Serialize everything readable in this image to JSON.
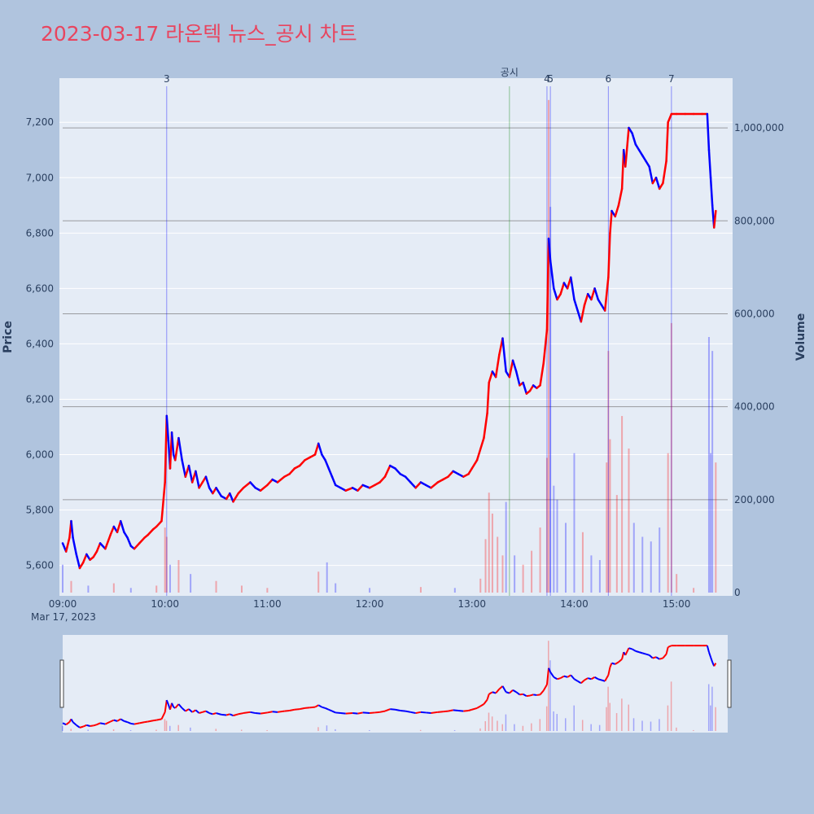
{
  "title": "2023-03-17 라온텍 뉴스_공시 차트",
  "chart_data": {
    "type": "candlestick",
    "title": "2023-03-17 라온텍 뉴스_공시 차트",
    "ylabel": "Price",
    "y2label": "Volume",
    "date_label": "Mar 17, 2023",
    "x_ticks": [
      "09:00",
      "10:00",
      "11:00",
      "12:00",
      "13:00",
      "14:00",
      "15:00"
    ],
    "price_range": [
      5490,
      7330
    ],
    "price_ticks": [
      "5,600",
      "5,800",
      "6,000",
      "6,200",
      "6,400",
      "6,600",
      "6,800",
      "7,000",
      "7,200"
    ],
    "volume_range": [
      0,
      1100000
    ],
    "volume_ticks": [
      "0",
      "200,000",
      "400,000",
      "600,000",
      "800,000",
      "1,000,000"
    ],
    "x_range": [
      "09:00",
      "15:30"
    ],
    "up_color": "#ff0000",
    "down_color": "#0000ff",
    "event_markers": [
      {
        "label": "3",
        "time": "10:01",
        "color": "#0000ff"
      },
      {
        "label": "공시",
        "time": "13:22",
        "color": "#008000"
      },
      {
        "label": "4",
        "time": "13:44",
        "color": "#0000ff"
      },
      {
        "label": "5",
        "time": "13:46",
        "color": "#0000ff"
      },
      {
        "label": "6",
        "time": "14:20",
        "color": "#0000ff"
      },
      {
        "label": "7",
        "time": "14:57",
        "color": "#0000ff"
      }
    ],
    "volume_reference_lines": [
      200000,
      400000,
      600000,
      800000,
      1000000
    ],
    "price_path": [
      [
        "09:00",
        5680
      ],
      [
        "09:02",
        5650
      ],
      [
        "09:04",
        5700
      ],
      [
        "09:05",
        5760
      ],
      [
        "09:06",
        5700
      ],
      [
        "09:08",
        5640
      ],
      [
        "09:10",
        5590
      ],
      [
        "09:12",
        5610
      ],
      [
        "09:14",
        5640
      ],
      [
        "09:16",
        5620
      ],
      [
        "09:18",
        5630
      ],
      [
        "09:20",
        5650
      ],
      [
        "09:22",
        5680
      ],
      [
        "09:25",
        5660
      ],
      [
        "09:28",
        5710
      ],
      [
        "09:30",
        5740
      ],
      [
        "09:32",
        5720
      ],
      [
        "09:34",
        5760
      ],
      [
        "09:36",
        5720
      ],
      [
        "09:38",
        5700
      ],
      [
        "09:40",
        5670
      ],
      [
        "09:42",
        5660
      ],
      [
        "09:45",
        5680
      ],
      [
        "09:48",
        5700
      ],
      [
        "09:50",
        5710
      ],
      [
        "09:53",
        5730
      ],
      [
        "09:55",
        5740
      ],
      [
        "09:58",
        5760
      ],
      [
        "10:00",
        5900
      ],
      [
        "10:01",
        6140
      ],
      [
        "10:02",
        6050
      ],
      [
        "10:03",
        5950
      ],
      [
        "10:04",
        6080
      ],
      [
        "10:05",
        6000
      ],
      [
        "10:06",
        5980
      ],
      [
        "10:08",
        6060
      ],
      [
        "10:10",
        5980
      ],
      [
        "10:12",
        5920
      ],
      [
        "10:14",
        5960
      ],
      [
        "10:16",
        5900
      ],
      [
        "10:18",
        5940
      ],
      [
        "10:20",
        5880
      ],
      [
        "10:22",
        5900
      ],
      [
        "10:24",
        5920
      ],
      [
        "10:26",
        5880
      ],
      [
        "10:28",
        5860
      ],
      [
        "10:30",
        5880
      ],
      [
        "10:33",
        5850
      ],
      [
        "10:36",
        5840
      ],
      [
        "10:38",
        5860
      ],
      [
        "10:40",
        5830
      ],
      [
        "10:43",
        5860
      ],
      [
        "10:46",
        5880
      ],
      [
        "10:50",
        5900
      ],
      [
        "10:53",
        5880
      ],
      [
        "10:56",
        5870
      ],
      [
        "11:00",
        5890
      ],
      [
        "11:03",
        5910
      ],
      [
        "11:06",
        5900
      ],
      [
        "11:10",
        5920
      ],
      [
        "11:13",
        5930
      ],
      [
        "11:16",
        5950
      ],
      [
        "11:19",
        5960
      ],
      [
        "11:22",
        5980
      ],
      [
        "11:25",
        5990
      ],
      [
        "11:28",
        6000
      ],
      [
        "11:30",
        6040
      ],
      [
        "11:32",
        6000
      ],
      [
        "11:34",
        5980
      ],
      [
        "11:36",
        5950
      ],
      [
        "11:38",
        5920
      ],
      [
        "11:40",
        5890
      ],
      [
        "11:43",
        5880
      ],
      [
        "11:46",
        5870
      ],
      [
        "11:50",
        5880
      ],
      [
        "11:53",
        5870
      ],
      [
        "11:56",
        5890
      ],
      [
        "12:00",
        5880
      ],
      [
        "12:03",
        5890
      ],
      [
        "12:06",
        5900
      ],
      [
        "12:09",
        5920
      ],
      [
        "12:12",
        5960
      ],
      [
        "12:15",
        5950
      ],
      [
        "12:18",
        5930
      ],
      [
        "12:21",
        5920
      ],
      [
        "12:24",
        5900
      ],
      [
        "12:27",
        5880
      ],
      [
        "12:30",
        5900
      ],
      [
        "12:33",
        5890
      ],
      [
        "12:36",
        5880
      ],
      [
        "12:40",
        5900
      ],
      [
        "12:43",
        5910
      ],
      [
        "12:46",
        5920
      ],
      [
        "12:49",
        5940
      ],
      [
        "12:52",
        5930
      ],
      [
        "12:55",
        5920
      ],
      [
        "12:58",
        5930
      ],
      [
        "13:00",
        5950
      ],
      [
        "13:03",
        5980
      ],
      [
        "13:05",
        6020
      ],
      [
        "13:07",
        6060
      ],
      [
        "13:09",
        6150
      ],
      [
        "13:10",
        6260
      ],
      [
        "13:12",
        6300
      ],
      [
        "13:14",
        6280
      ],
      [
        "13:16",
        6360
      ],
      [
        "13:18",
        6420
      ],
      [
        "13:20",
        6300
      ],
      [
        "13:22",
        6280
      ],
      [
        "13:24",
        6340
      ],
      [
        "13:26",
        6300
      ],
      [
        "13:28",
        6250
      ],
      [
        "13:30",
        6260
      ],
      [
        "13:32",
        6220
      ],
      [
        "13:34",
        6230
      ],
      [
        "13:36",
        6250
      ],
      [
        "13:38",
        6240
      ],
      [
        "13:40",
        6250
      ],
      [
        "13:42",
        6330
      ],
      [
        "13:44",
        6450
      ],
      [
        "13:45",
        6780
      ],
      [
        "13:46",
        6700
      ],
      [
        "13:48",
        6600
      ],
      [
        "13:50",
        6560
      ],
      [
        "13:52",
        6580
      ],
      [
        "13:54",
        6620
      ],
      [
        "13:56",
        6600
      ],
      [
        "13:58",
        6640
      ],
      [
        "14:00",
        6560
      ],
      [
        "14:02",
        6520
      ],
      [
        "14:04",
        6480
      ],
      [
        "14:06",
        6540
      ],
      [
        "14:08",
        6580
      ],
      [
        "14:10",
        6560
      ],
      [
        "14:12",
        6600
      ],
      [
        "14:14",
        6560
      ],
      [
        "14:16",
        6540
      ],
      [
        "14:18",
        6520
      ],
      [
        "14:20",
        6640
      ],
      [
        "14:21",
        6800
      ],
      [
        "14:22",
        6880
      ],
      [
        "14:24",
        6860
      ],
      [
        "14:26",
        6900
      ],
      [
        "14:28",
        6960
      ],
      [
        "14:29",
        7100
      ],
      [
        "14:30",
        7040
      ],
      [
        "14:32",
        7180
      ],
      [
        "14:34",
        7160
      ],
      [
        "14:36",
        7120
      ],
      [
        "14:38",
        7100
      ],
      [
        "14:40",
        7080
      ],
      [
        "14:42",
        7060
      ],
      [
        "14:44",
        7040
      ],
      [
        "14:46",
        6980
      ],
      [
        "14:48",
        7000
      ],
      [
        "14:50",
        6960
      ],
      [
        "14:52",
        6980
      ],
      [
        "14:54",
        7060
      ],
      [
        "14:55",
        7200
      ],
      [
        "14:57",
        7230
      ],
      [
        "15:00",
        7230
      ],
      [
        "15:05",
        7230
      ],
      [
        "15:10",
        7230
      ],
      [
        "15:15",
        7230
      ],
      [
        "15:18",
        7230
      ],
      [
        "15:19",
        7100
      ],
      [
        "15:20",
        7000
      ],
      [
        "15:21",
        6900
      ],
      [
        "15:22",
        6820
      ],
      [
        "15:23",
        6880
      ]
    ],
    "volume_bars": [
      [
        "09:00",
        60000
      ],
      [
        "09:05",
        25000
      ],
      [
        "09:15",
        15000
      ],
      [
        "09:30",
        20000
      ],
      [
        "09:40",
        10000
      ],
      [
        "09:55",
        15000
      ],
      [
        "10:00",
        140000
      ],
      [
        "10:01",
        120000
      ],
      [
        "10:03",
        60000
      ],
      [
        "10:08",
        70000
      ],
      [
        "10:15",
        40000
      ],
      [
        "10:30",
        25000
      ],
      [
        "10:45",
        15000
      ],
      [
        "11:00",
        10000
      ],
      [
        "11:30",
        45000
      ],
      [
        "11:35",
        65000
      ],
      [
        "11:40",
        20000
      ],
      [
        "12:00",
        10000
      ],
      [
        "12:30",
        12000
      ],
      [
        "12:50",
        10000
      ],
      [
        "13:05",
        30000
      ],
      [
        "13:08",
        115000
      ],
      [
        "13:10",
        215000
      ],
      [
        "13:12",
        170000
      ],
      [
        "13:15",
        120000
      ],
      [
        "13:18",
        80000
      ],
      [
        "13:20",
        195000
      ],
      [
        "13:25",
        80000
      ],
      [
        "13:30",
        60000
      ],
      [
        "13:35",
        90000
      ],
      [
        "13:40",
        140000
      ],
      [
        "13:44",
        290000
      ],
      [
        "13:45",
        1060000
      ],
      [
        "13:46",
        830000
      ],
      [
        "13:48",
        230000
      ],
      [
        "13:50",
        200000
      ],
      [
        "13:55",
        150000
      ],
      [
        "14:00",
        300000
      ],
      [
        "14:05",
        130000
      ],
      [
        "14:10",
        80000
      ],
      [
        "14:15",
        70000
      ],
      [
        "14:19",
        280000
      ],
      [
        "14:20",
        520000
      ],
      [
        "14:21",
        330000
      ],
      [
        "14:25",
        210000
      ],
      [
        "14:28",
        380000
      ],
      [
        "14:32",
        310000
      ],
      [
        "14:35",
        150000
      ],
      [
        "14:40",
        120000
      ],
      [
        "14:45",
        110000
      ],
      [
        "14:50",
        140000
      ],
      [
        "14:55",
        300000
      ],
      [
        "14:57",
        580000
      ],
      [
        "15:00",
        40000
      ],
      [
        "15:10",
        10000
      ],
      [
        "15:19",
        550000
      ],
      [
        "15:20",
        300000
      ],
      [
        "15:21",
        520000
      ],
      [
        "15:23",
        280000
      ]
    ]
  }
}
